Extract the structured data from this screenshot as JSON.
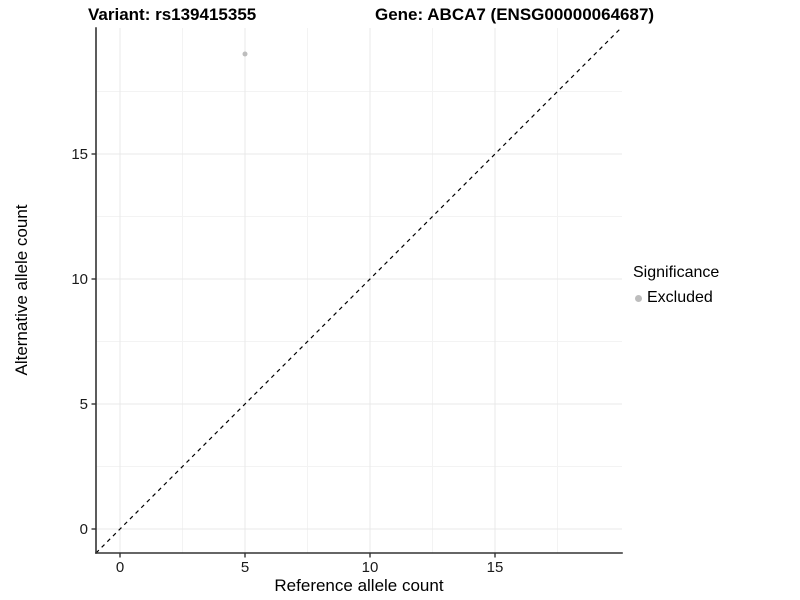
{
  "title": {
    "variant_label": "Variant: rs139415355",
    "gene_label": "Gene: ABCA7 (ENSG00000064687)"
  },
  "legend": {
    "title": "Significance",
    "items": [
      {
        "label": "Excluded",
        "color": "#bdbdbd"
      }
    ]
  },
  "colors": {
    "axis": "#333333",
    "grid_major": "#e9e9e9",
    "grid_minor": "#f3f3f3",
    "text": "#1a1a1a",
    "background": "#ffffff"
  },
  "chart_data": {
    "type": "scatter",
    "title": "Variant: rs139415355   Gene: ABCA7 (ENSG00000064687)",
    "xlabel": "Reference allele count",
    "ylabel": "Alternative allele count",
    "xlim": [
      -0.96,
      20.08
    ],
    "ylim": [
      -0.96,
      20.04
    ],
    "xticks": [
      0,
      5,
      10,
      15
    ],
    "yticks": [
      0,
      5,
      10,
      15
    ],
    "x_minor_ticks": [
      2.5,
      7.5,
      12.5,
      17.5
    ],
    "y_minor_ticks": [
      2.5,
      7.5,
      12.5,
      17.5
    ],
    "grid": true,
    "legend_position": "right",
    "series": [
      {
        "name": "Excluded",
        "color": "#bdbdbd",
        "marker_radius": 2.5,
        "points": [
          {
            "x": 5,
            "y": 19
          }
        ]
      }
    ],
    "identity_line": {
      "slope": 1,
      "intercept": 0,
      "style": "dashed",
      "color": "#000000"
    }
  }
}
